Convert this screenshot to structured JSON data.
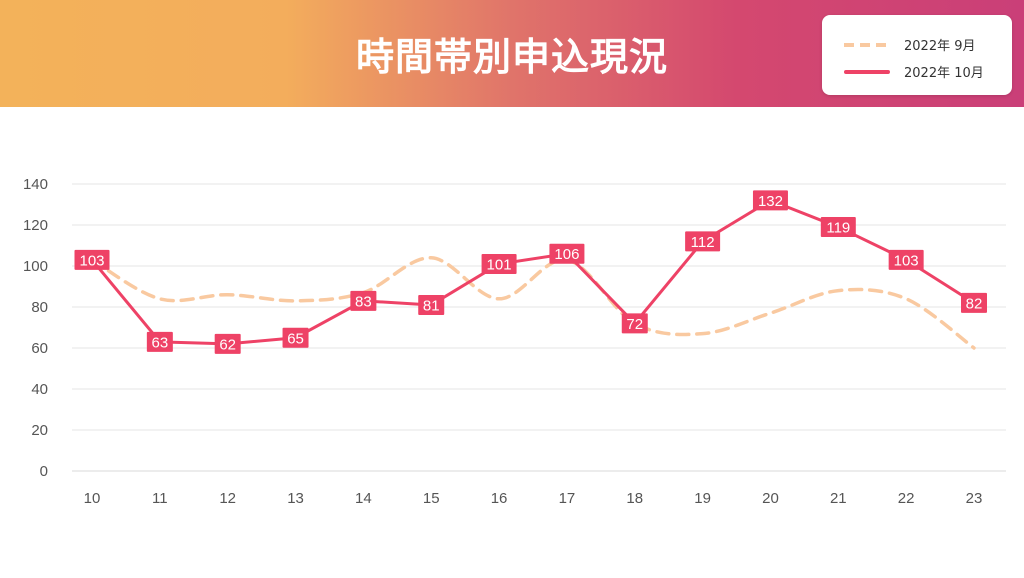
{
  "header": {
    "title": "時間帯別申込現況"
  },
  "chart_data": {
    "type": "line",
    "title": "時間帯別申込現況",
    "xlabel": "",
    "ylabel": "",
    "x": [
      10,
      11,
      12,
      13,
      14,
      15,
      16,
      17,
      18,
      19,
      20,
      21,
      22,
      23
    ],
    "ylim": [
      0,
      140
    ],
    "yticks": [
      0,
      20,
      40,
      60,
      80,
      100,
      120,
      140
    ],
    "grid": true,
    "legend_position": "top-right",
    "series": [
      {
        "name": "2022年 9月",
        "style": "dashed",
        "color": "#f9c9a0",
        "values": [
          103,
          84,
          86,
          83,
          87,
          104,
          84,
          103,
          72,
          67,
          77,
          88,
          84,
          60
        ]
      },
      {
        "name": "2022年 10月",
        "style": "solid",
        "color": "#ee4266",
        "values": [
          103,
          63,
          62,
          65,
          83,
          81,
          101,
          106,
          72,
          112,
          132,
          119,
          103,
          82
        ],
        "data_labels": true
      }
    ]
  },
  "colors": {
    "banner_start": "#f3b25a",
    "banner_end": "#ca3f78",
    "accent": "#ee4266",
    "secondary": "#f9c9a0"
  }
}
